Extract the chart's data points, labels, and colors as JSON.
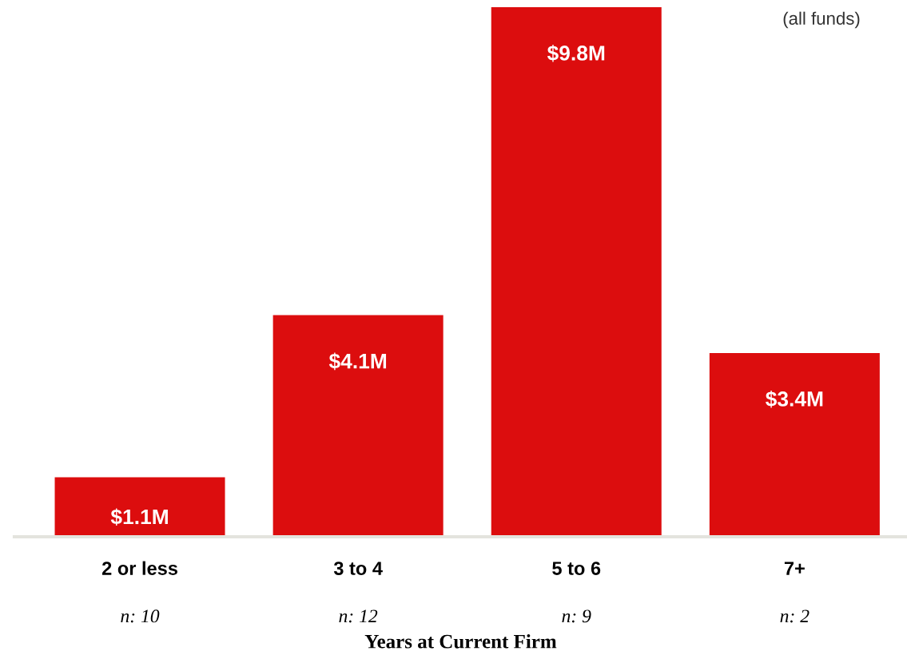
{
  "chart_data": {
    "type": "bar",
    "xlabel": "Years at Current Firm",
    "categories": [
      "2 or less",
      "3 to 4",
      "5 to 6",
      "7+"
    ],
    "values": [
      1.1,
      4.1,
      9.8,
      3.4
    ],
    "value_labels": [
      "$1.1M",
      "$4.1M",
      "$9.8M",
      "$3.4M"
    ],
    "color": "#dc0d0e",
    "grid": false,
    "legend": false,
    "annotations": [
      "n: 10",
      "n: 12",
      "n: 9",
      "n: 2",
      "(all funds)"
    ]
  }
}
